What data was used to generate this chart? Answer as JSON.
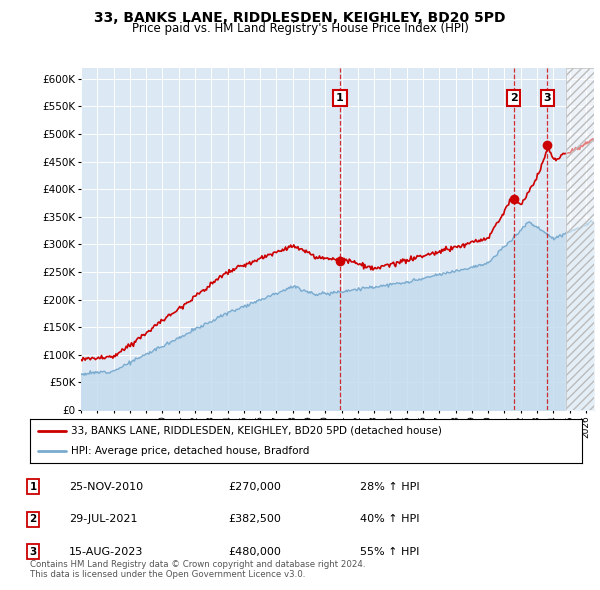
{
  "title": "33, BANKS LANE, RIDDLESDEN, KEIGHLEY, BD20 5PD",
  "subtitle": "Price paid vs. HM Land Registry's House Price Index (HPI)",
  "yticks": [
    0,
    50000,
    100000,
    150000,
    200000,
    250000,
    300000,
    350000,
    400000,
    450000,
    500000,
    550000,
    600000
  ],
  "ytick_labels": [
    "£0",
    "£50K",
    "£100K",
    "£150K",
    "£200K",
    "£250K",
    "£300K",
    "£350K",
    "£400K",
    "£450K",
    "£500K",
    "£550K",
    "£600K"
  ],
  "xlim_start": 1995.0,
  "xlim_end": 2026.5,
  "ylim_top": 620000,
  "hpi_color": "#7aabcf",
  "hpi_fill_color": "#c5ddef",
  "price_color": "#cc0000",
  "sale_dates": [
    2010.9,
    2021.57,
    2023.62
  ],
  "sale_prices": [
    270000,
    382500,
    480000
  ],
  "sale_labels": [
    "1",
    "2",
    "3"
  ],
  "legend_price_label": "33, BANKS LANE, RIDDLESDEN, KEIGHLEY, BD20 5PD (detached house)",
  "legend_hpi_label": "HPI: Average price, detached house, Bradford",
  "table_rows": [
    [
      "1",
      "25-NOV-2010",
      "£270,000",
      "28% ↑ HPI"
    ],
    [
      "2",
      "29-JUL-2021",
      "£382,500",
      "40% ↑ HPI"
    ],
    [
      "3",
      "15-AUG-2023",
      "£480,000",
      "55% ↑ HPI"
    ]
  ],
  "footnote": "Contains HM Land Registry data © Crown copyright and database right 2024.\nThis data is licensed under the Open Government Licence v3.0.",
  "plot_bg_color": "#dde8f5",
  "hatch_future_start": 2024.75
}
